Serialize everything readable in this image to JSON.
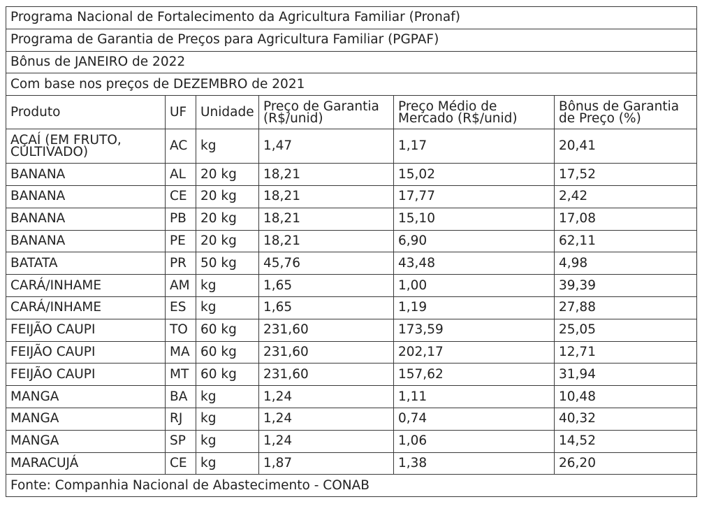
{
  "titles": [
    "Programa Nacional de Fortalecimento da Agricultura Familiar (Pronaf)",
    "Programa de Garantia de Preços para Agricultura Familiar (PGPAF)",
    "Bônus de JANEIRO de 2022",
    "Com base nos preços de DEZEMBRO de 2021"
  ],
  "columns": {
    "produto": "Produto",
    "uf": "UF",
    "unidade": "Unidade",
    "preco_garantia": "Preço de Garantia (R$/unid)",
    "preco_mercado": "Preço Médio de Mercado (R$/unid)",
    "bonus": "Bônus de Garantia de Preço (%)"
  },
  "rows": [
    {
      "produto": "AÇAÍ (EM FRUTO, CULTIVADO)",
      "uf": "AC",
      "unidade": "kg",
      "garantia": "1,47",
      "mercado": "1,17",
      "bonus": "20,41"
    },
    {
      "produto": "BANANA",
      "uf": "AL",
      "unidade": "20 kg",
      "garantia": "18,21",
      "mercado": "15,02",
      "bonus": "17,52"
    },
    {
      "produto": "BANANA",
      "uf": "CE",
      "unidade": "20 kg",
      "garantia": "18,21",
      "mercado": "17,77",
      "bonus": "2,42"
    },
    {
      "produto": "BANANA",
      "uf": "PB",
      "unidade": "20 kg",
      "garantia": "18,21",
      "mercado": "15,10",
      "bonus": "17,08"
    },
    {
      "produto": "BANANA",
      "uf": "PE",
      "unidade": "20 kg",
      "garantia": "18,21",
      "mercado": "6,90",
      "bonus": "62,11"
    },
    {
      "produto": "BATATA",
      "uf": "PR",
      "unidade": "50 kg",
      "garantia": "45,76",
      "mercado": "43,48",
      "bonus": "4,98"
    },
    {
      "produto": "CARÁ/INHAME",
      "uf": "AM",
      "unidade": "kg",
      "garantia": "1,65",
      "mercado": "1,00",
      "bonus": "39,39"
    },
    {
      "produto": "CARÁ/INHAME",
      "uf": "ES",
      "unidade": "kg",
      "garantia": "1,65",
      "mercado": "1,19",
      "bonus": "27,88"
    },
    {
      "produto": "FEIJÃO CAUPI",
      "uf": "TO",
      "unidade": "60 kg",
      "garantia": "231,60",
      "mercado": "173,59",
      "bonus": "25,05"
    },
    {
      "produto": "FEIJÃO CAUPI",
      "uf": "MA",
      "unidade": "60 kg",
      "garantia": "231,60",
      "mercado": "202,17",
      "bonus": "12,71"
    },
    {
      "produto": "FEIJÃO CAUPI",
      "uf": "MT",
      "unidade": "60 kg",
      "garantia": "231,60",
      "mercado": "157,62",
      "bonus": "31,94"
    },
    {
      "produto": "MANGA",
      "uf": "BA",
      "unidade": "kg",
      "garantia": "1,24",
      "mercado": "1,11",
      "bonus": "10,48"
    },
    {
      "produto": "MANGA",
      "uf": "RJ",
      "unidade": "kg",
      "garantia": "1,24",
      "mercado": "0,74",
      "bonus": "40,32"
    },
    {
      "produto": "MANGA",
      "uf": "SP",
      "unidade": "kg",
      "garantia": "1,24",
      "mercado": "1,06",
      "bonus": "14,52"
    },
    {
      "produto": "MARACUJÁ",
      "uf": "CE",
      "unidade": "kg",
      "garantia": "1,87",
      "mercado": "1,38",
      "bonus": "26,20"
    }
  ],
  "footer": "Fonte: Companhia Nacional de Abastecimento - CONAB"
}
